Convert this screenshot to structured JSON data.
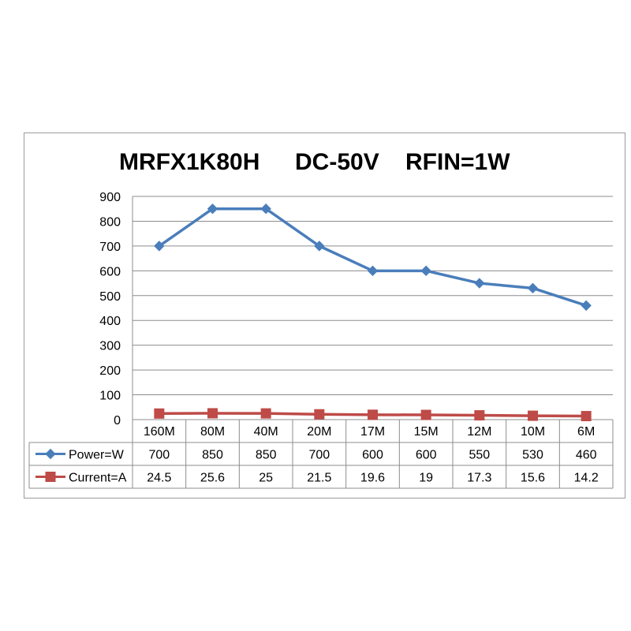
{
  "chart_data": {
    "type": "line",
    "title_parts": [
      "MRFX1K80H",
      "DC-50V",
      "RFIN=1W"
    ],
    "categories": [
      "160M",
      "80M",
      "40M",
      "20M",
      "17M",
      "15M",
      "12M",
      "10M",
      "6M"
    ],
    "ylim": [
      0,
      900
    ],
    "yticks": [
      0,
      100,
      200,
      300,
      400,
      500,
      600,
      700,
      800,
      900
    ],
    "grid": true,
    "legend": "data-table",
    "series": [
      {
        "name": "Power=W",
        "values": [
          700,
          850,
          850,
          700,
          600,
          600,
          550,
          530,
          460
        ],
        "labels": [
          "700",
          "850",
          "850",
          "700",
          "600",
          "600",
          "550",
          "530",
          "460"
        ],
        "color": "#4a7ebb",
        "marker": "diamond"
      },
      {
        "name": "Current=A",
        "values": [
          24.5,
          25.6,
          25,
          21.5,
          19.6,
          19,
          17.3,
          15.6,
          14.2
        ],
        "labels": [
          "24.5",
          "25.6",
          "25",
          "21.5",
          "19.6",
          "19",
          "17.3",
          "15.6",
          "14.2"
        ],
        "color": "#be4b48",
        "marker": "square"
      }
    ]
  }
}
